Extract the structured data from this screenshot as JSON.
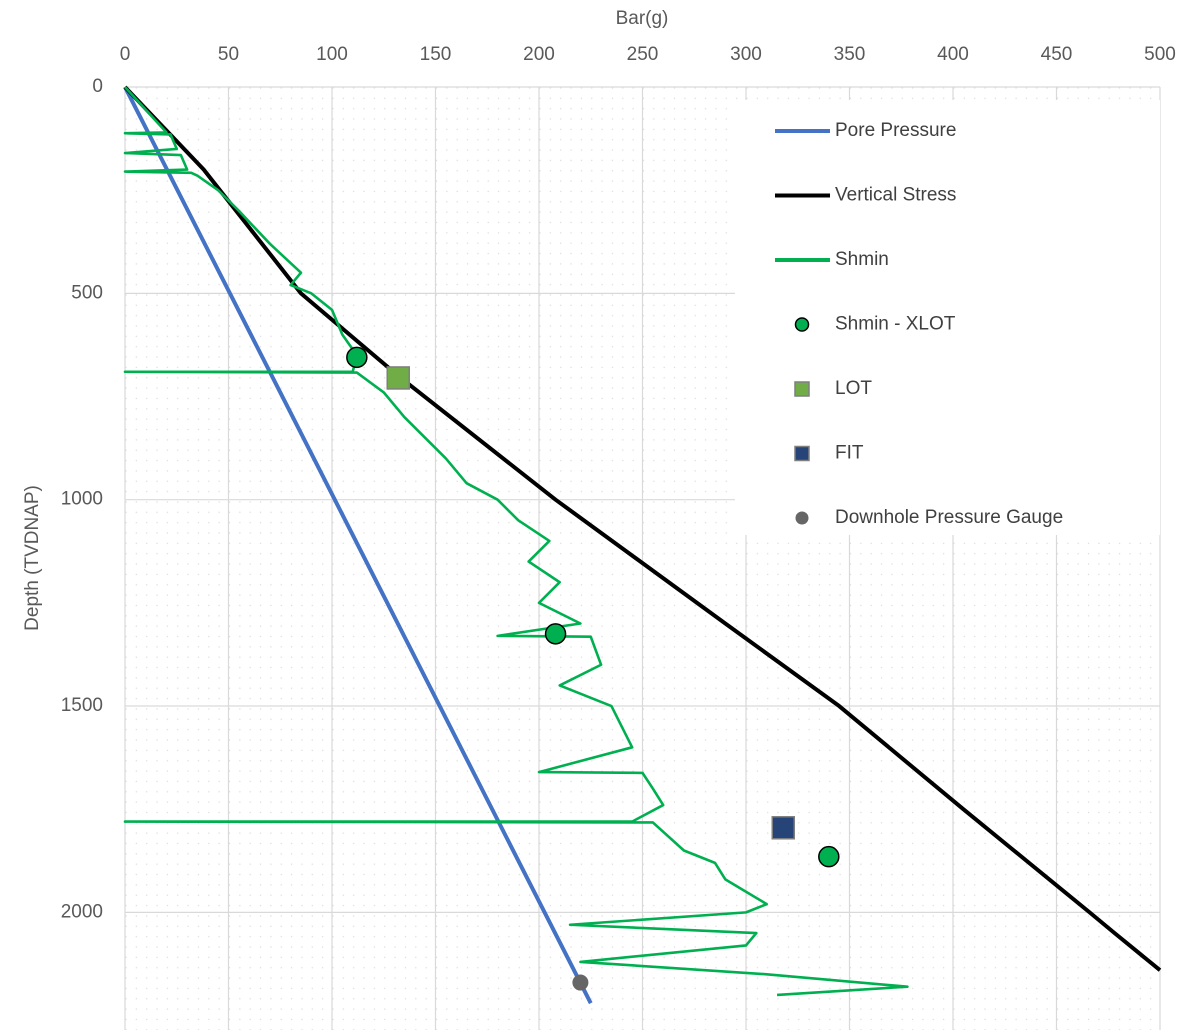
{
  "chart_data": {
    "type": "line",
    "x_label": "Bar(g)",
    "y_label": "Depth (TVDNAP)",
    "x_axis_position": "top",
    "y_inverted": true,
    "grid": true,
    "legend": "upper right",
    "xlim": [
      0,
      500
    ],
    "xticks": [
      0,
      50,
      100,
      150,
      200,
      250,
      300,
      350,
      400,
      450,
      500
    ],
    "ylim": [
      0,
      2285
    ],
    "yticks": [
      0,
      500,
      1000,
      1500,
      2000
    ],
    "series": [
      {
        "name": "Pore Pressure",
        "color": "#4472c4",
        "mode": "line",
        "x": [
          0,
          225
        ],
        "y": [
          0,
          2220
        ]
      },
      {
        "name": "Vertical Stress",
        "color": "#000000",
        "mode": "line",
        "x": [
          0,
          38,
          85,
          132,
          208,
          290,
          345,
          405,
          466,
          478,
          500
        ],
        "y": [
          0,
          200,
          500,
          700,
          1000,
          1300,
          1500,
          1750,
          2000,
          2050,
          2140
        ]
      },
      {
        "name": "Shmin",
        "color": "#00b050",
        "mode": "line",
        "x": [
          0,
          20,
          0,
          22,
          25,
          0,
          27,
          30,
          0,
          32,
          35,
          45,
          55,
          70,
          85,
          80,
          90,
          100,
          105,
          112,
          110,
          0,
          112,
          125,
          135,
          145,
          155,
          165,
          180,
          190,
          205,
          195,
          210,
          200,
          220,
          180,
          225,
          230,
          210,
          235,
          240,
          245,
          200,
          250,
          255,
          260,
          245,
          0,
          255,
          270,
          285,
          290,
          310,
          300,
          215,
          305,
          300,
          220,
          310,
          378,
          315
        ],
        "y": [
          0,
          110,
          112,
          115,
          150,
          160,
          165,
          200,
          205,
          208,
          215,
          250,
          300,
          380,
          450,
          480,
          500,
          540,
          600,
          650,
          690,
          690,
          692,
          740,
          800,
          850,
          900,
          960,
          1000,
          1050,
          1100,
          1150,
          1200,
          1250,
          1300,
          1330,
          1332,
          1400,
          1450,
          1500,
          1550,
          1600,
          1660,
          1662,
          1700,
          1740,
          1780,
          1780,
          1782,
          1850,
          1880,
          1920,
          1980,
          2000,
          2030,
          2050,
          2080,
          2120,
          2150,
          2180,
          2200
        ]
      },
      {
        "name": "Shmin - XLOT",
        "color": "#00b050",
        "mode": "marker",
        "marker": "circle",
        "x": [
          112,
          208,
          340
        ],
        "y": [
          655,
          1325,
          1865
        ]
      },
      {
        "name": "LOT",
        "color": "#70ad47",
        "mode": "marker",
        "marker": "square",
        "x": [
          132
        ],
        "y": [
          705
        ]
      },
      {
        "name": "FIT",
        "color": "#264478",
        "mode": "marker",
        "marker": "square",
        "x": [
          318
        ],
        "y": [
          1795
        ]
      },
      {
        "name": "Downhole Pressure Gauge",
        "color": "#666666",
        "mode": "marker",
        "marker": "dot",
        "x": [
          220
        ],
        "y": [
          2170
        ]
      }
    ]
  }
}
